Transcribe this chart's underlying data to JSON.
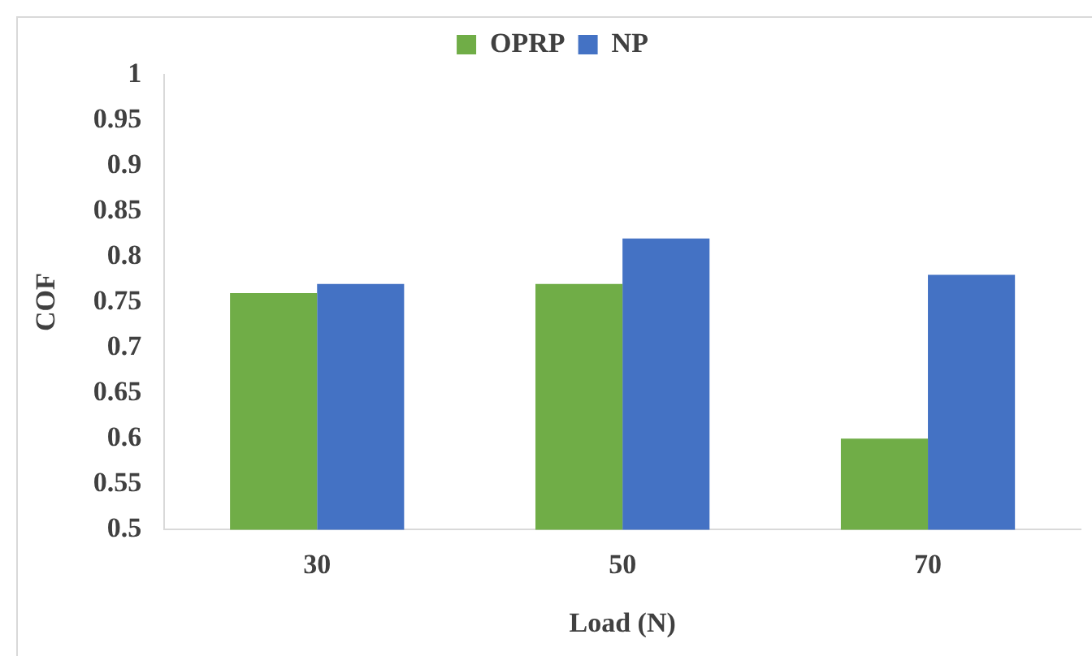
{
  "chart_data": {
    "type": "bar",
    "xlabel": "Load (N)",
    "ylabel": "COF",
    "categories": [
      "30",
      "50",
      "70"
    ],
    "series": [
      {
        "name": "OPRP",
        "color": "#70ad47",
        "values": [
          0.76,
          0.77,
          0.6
        ]
      },
      {
        "name": "NP",
        "color": "#4472c4",
        "values": [
          0.77,
          0.82,
          0.78
        ]
      }
    ],
    "ylim": [
      0.5,
      1
    ],
    "yticks": [
      0.5,
      0.55,
      0.6,
      0.65,
      0.7,
      0.75,
      0.8,
      0.85,
      0.9,
      0.95,
      1
    ],
    "grid": false,
    "legend": "top"
  }
}
